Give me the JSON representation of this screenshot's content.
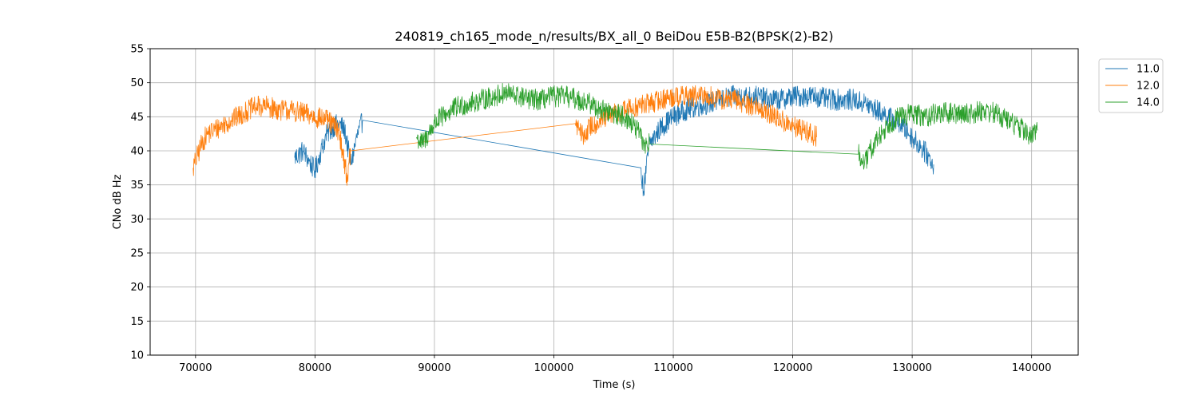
{
  "chart_data": {
    "type": "line",
    "title": "240819_ch165_mode_n/results/BX_all_0 BeiDou E5B-B2(BPSK(2)-B2)",
    "xlabel": "Time (s)",
    "ylabel": "CNo dB Hz",
    "xlim": [
      66200,
      143900
    ],
    "ylim": [
      10,
      55
    ],
    "xticks": [
      70000,
      80000,
      90000,
      100000,
      110000,
      120000,
      130000,
      140000
    ],
    "yticks": [
      10,
      15,
      20,
      25,
      30,
      35,
      40,
      45,
      50,
      55
    ],
    "grid": true,
    "legend_position": "upper-right-outside",
    "series": [
      {
        "name": "11.0",
        "color": "#1f77b4",
        "x": [
          78300,
          79000,
          79500,
          80000,
          80500,
          81000,
          81500,
          82000,
          82500,
          83000,
          83500,
          84000,
          107300,
          107500,
          108000,
          109000,
          110000,
          111000,
          112000,
          113000,
          114000,
          115000,
          116000,
          117000,
          118000,
          119000,
          120000,
          121000,
          122000,
          123000,
          124000,
          125000,
          126000,
          127000,
          128000,
          129000,
          130000,
          131000,
          131800
        ],
        "y": [
          39,
          40,
          38.5,
          37,
          40,
          42.5,
          43.5,
          44,
          43,
          38,
          42,
          44.5,
          37.5,
          34,
          41,
          43.5,
          45,
          46,
          46.5,
          47,
          47.5,
          48,
          48,
          48,
          47.5,
          47.5,
          48,
          48,
          48,
          47.5,
          47.5,
          47.5,
          47,
          46,
          45,
          44,
          42,
          40,
          38
        ]
      },
      {
        "name": "12.0",
        "color": "#ff7f0e",
        "x": [
          69800,
          70500,
          71000,
          72000,
          73000,
          74000,
          75000,
          76000,
          77000,
          78000,
          79000,
          80000,
          81000,
          82000,
          82700,
          83000,
          101800,
          102500,
          103000,
          104000,
          105000,
          106000,
          107000,
          108000,
          109000,
          110000,
          111000,
          112000,
          113000,
          114000,
          115000,
          116000,
          117000,
          118000,
          119000,
          120000,
          121000,
          122000
        ],
        "y": [
          37.5,
          41,
          42.5,
          43.5,
          44.5,
          45.5,
          46.5,
          46.5,
          46,
          46,
          45.5,
          45,
          44.5,
          43,
          36,
          40,
          44,
          42,
          43.5,
          44.5,
          45.5,
          46,
          46.5,
          47,
          47.5,
          48,
          48,
          48,
          48,
          47.5,
          47.5,
          47,
          46.5,
          45.5,
          44.5,
          43.5,
          43,
          42
        ]
      },
      {
        "name": "14.0",
        "color": "#2ca02c",
        "x": [
          88500,
          89000,
          90000,
          91000,
          92000,
          93000,
          94000,
          95000,
          96000,
          97000,
          98000,
          99000,
          100000,
          101000,
          102000,
          103000,
          104000,
          105000,
          106000,
          107000,
          107500,
          108000,
          125500,
          126000,
          126500,
          127000,
          128000,
          129000,
          130000,
          131000,
          132000,
          133000,
          134000,
          135000,
          136000,
          137000,
          138000,
          139000,
          140000,
          140500
        ],
        "y": [
          42,
          41,
          44,
          45.5,
          46.5,
          47,
          47.5,
          48,
          48.5,
          48,
          47.5,
          47.5,
          48,
          48,
          47.5,
          47,
          46,
          45.5,
          45,
          43,
          41,
          41,
          39.5,
          38,
          40,
          41.5,
          44,
          45,
          45.5,
          45,
          45.5,
          45.5,
          45.5,
          45.5,
          46,
          45.5,
          44.5,
          43.5,
          42,
          43
        ]
      }
    ]
  }
}
